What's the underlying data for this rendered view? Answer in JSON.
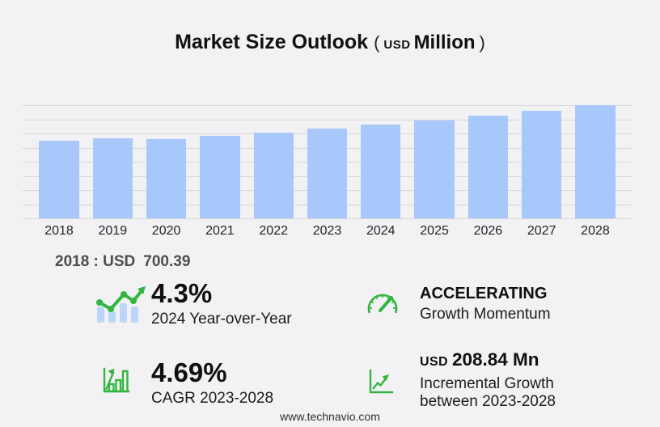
{
  "title": {
    "text": "Market Size Outlook",
    "paren_open": "(",
    "currency": "USD",
    "unit": "Million",
    "paren_close": ")"
  },
  "chart_data": {
    "type": "bar",
    "title": "Market Size Outlook (USD Million)",
    "unit": "USD Million",
    "categories": [
      "2018",
      "2019",
      "2020",
      "2021",
      "2022",
      "2023",
      "2024",
      "2025",
      "2026",
      "2027",
      "2028"
    ],
    "values": [
      700.39,
      722,
      716,
      744,
      776,
      811,
      846,
      884,
      925,
      970,
      1020
    ],
    "xlabel": "",
    "ylabel": "",
    "ylim": [
      0,
      1020
    ],
    "grid": true,
    "gridline_count": 9,
    "legend": "none",
    "bar_color": "#a8c7fa",
    "gridline_color": "#d7d7d9"
  },
  "base_year_note": {
    "label": "2018 : USD",
    "value": "700.39"
  },
  "stats": {
    "yoy": {
      "icon": "bar-trend-icon",
      "value": "4.3%",
      "label": "2024 Year-over-Year"
    },
    "momentum": {
      "icon": "speedometer-icon",
      "value": "ACCELERATING",
      "label": "Growth Momentum"
    },
    "cagr": {
      "icon": "growth-chart-icon",
      "value": "4.69%",
      "label": "CAGR 2023-2028"
    },
    "incremental": {
      "icon": "trend-axes-icon",
      "prefix": "USD",
      "value": "208.84 Mn",
      "label_line1": "Incremental Growth",
      "label_line2": "between 2023-2028"
    }
  },
  "footer": {
    "text": "www.technavio.com"
  },
  "colors": {
    "background": "#f2f2f4",
    "bar_blue": "#a8c7fa",
    "icon_bar_blue": "#bdd5f9",
    "accent_green": "#33b540",
    "note_gray": "#4d4d4f"
  }
}
